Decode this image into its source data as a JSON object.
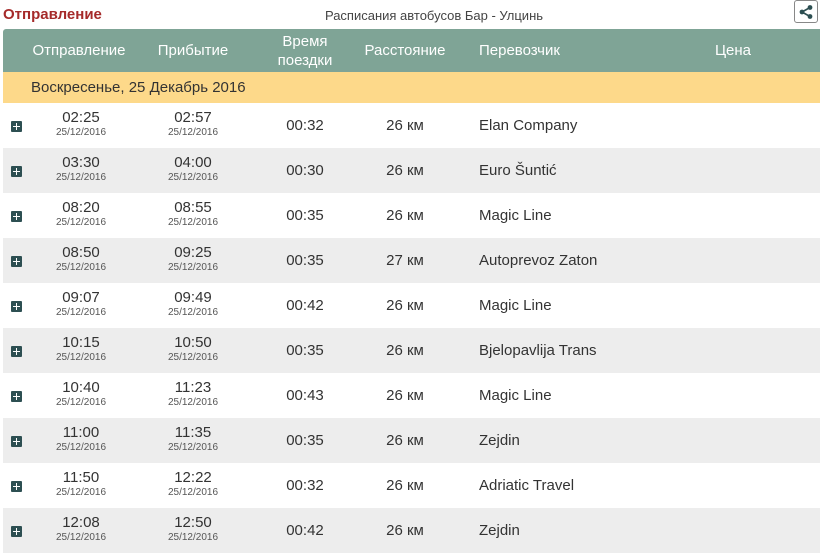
{
  "header": {
    "title": "Отправление",
    "subtitle": "Расписания автобусов Бар - Улцинь",
    "share_icon": "share-icon"
  },
  "table": {
    "columns": {
      "departure": "Отправление",
      "arrival": "Прибытие",
      "duration_line1": "Время",
      "duration_line2": "поездки",
      "distance": "Расстояние",
      "carrier": "Перевозчик",
      "price": "Цена"
    },
    "date_group": "Воскресенье, 25 Декабрь 2016",
    "rows": [
      {
        "dep": "02:25",
        "dep_date": "25/12/2016",
        "arr": "02:57",
        "arr_date": "25/12/2016",
        "duration": "00:32",
        "distance": "26 км",
        "carrier": "Elan Company",
        "price": ""
      },
      {
        "dep": "03:30",
        "dep_date": "25/12/2016",
        "arr": "04:00",
        "arr_date": "25/12/2016",
        "duration": "00:30",
        "distance": "26 км",
        "carrier": "Euro Šuntić",
        "price": ""
      },
      {
        "dep": "08:20",
        "dep_date": "25/12/2016",
        "arr": "08:55",
        "arr_date": "25/12/2016",
        "duration": "00:35",
        "distance": "26 км",
        "carrier": "Magic Line",
        "price": ""
      },
      {
        "dep": "08:50",
        "dep_date": "25/12/2016",
        "arr": "09:25",
        "arr_date": "25/12/2016",
        "duration": "00:35",
        "distance": "27 км",
        "carrier": "Autoprevoz Zaton",
        "price": ""
      },
      {
        "dep": "09:07",
        "dep_date": "25/12/2016",
        "arr": "09:49",
        "arr_date": "25/12/2016",
        "duration": "00:42",
        "distance": "26 км",
        "carrier": "Magic Line",
        "price": ""
      },
      {
        "dep": "10:15",
        "dep_date": "25/12/2016",
        "arr": "10:50",
        "arr_date": "25/12/2016",
        "duration": "00:35",
        "distance": "26 км",
        "carrier": "Bjelopavlija Trans",
        "price": ""
      },
      {
        "dep": "10:40",
        "dep_date": "25/12/2016",
        "arr": "11:23",
        "arr_date": "25/12/2016",
        "duration": "00:43",
        "distance": "26 км",
        "carrier": "Magic Line",
        "price": ""
      },
      {
        "dep": "11:00",
        "dep_date": "25/12/2016",
        "arr": "11:35",
        "arr_date": "25/12/2016",
        "duration": "00:35",
        "distance": "26 км",
        "carrier": "Zejdin",
        "price": ""
      },
      {
        "dep": "11:50",
        "dep_date": "25/12/2016",
        "arr": "12:22",
        "arr_date": "25/12/2016",
        "duration": "00:32",
        "distance": "26 км",
        "carrier": "Adriatic Travel",
        "price": ""
      },
      {
        "dep": "12:08",
        "dep_date": "25/12/2016",
        "arr": "12:50",
        "arr_date": "25/12/2016",
        "duration": "00:42",
        "distance": "26 км",
        "carrier": "Zejdin",
        "price": ""
      }
    ],
    "expand_icon": "plus-square-icon"
  },
  "colors": {
    "title": "#a52a2a",
    "header_bg": "#7fa496",
    "date_bg": "#fdd98a",
    "alt_row_bg": "#ededed",
    "expand_icon": "#2d4f52"
  }
}
